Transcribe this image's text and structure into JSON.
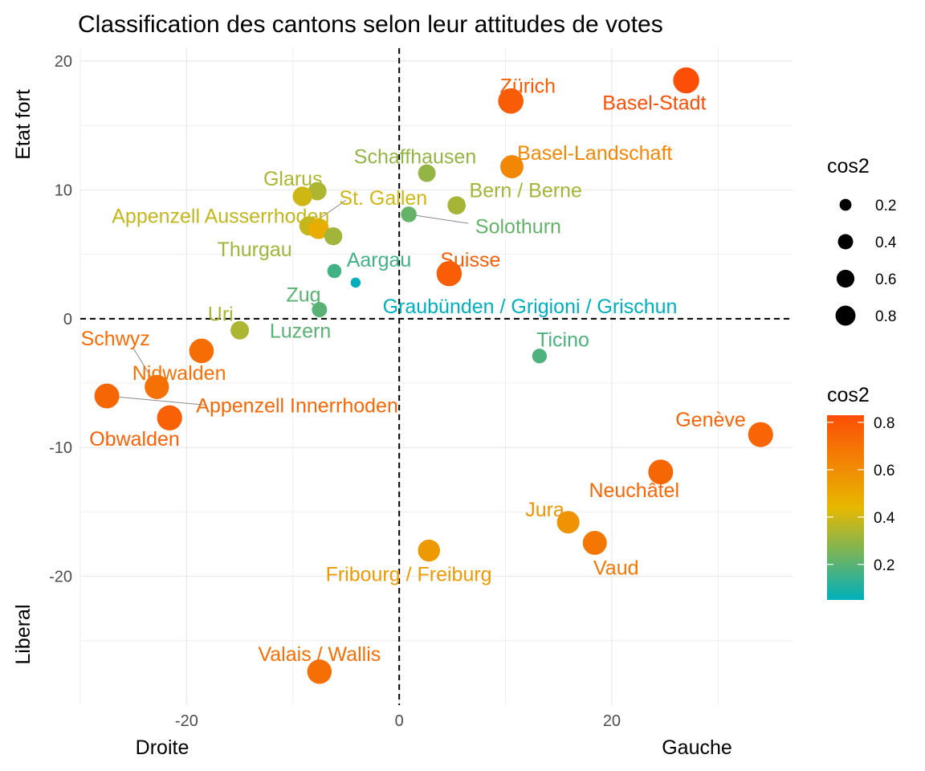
{
  "chart_data": {
    "type": "scatter",
    "title": "Classification des cantons selon leur attitudes de votes",
    "xlim": [
      -30,
      37
    ],
    "ylim": [
      -30,
      21
    ],
    "x_ticks": [
      -20,
      0,
      20
    ],
    "y_ticks": [
      -20,
      -10,
      0,
      10,
      20
    ],
    "grid": true,
    "axis_words": {
      "x_left": "Droite",
      "x_right": "Gauche",
      "y_top": "Etat fort",
      "y_bottom": "Liberal"
    },
    "reference_lines": {
      "x": 0,
      "y": 0,
      "style": "dashed"
    },
    "points": [
      {
        "label": "Basel-Stadt",
        "x": 27.0,
        "y": 18.5,
        "cos2": 0.83
      },
      {
        "label": "Zürich",
        "x": 10.5,
        "y": 16.9,
        "cos2": 0.78
      },
      {
        "label": "Basel-Landschaft",
        "x": 10.6,
        "y": 11.8,
        "cos2": 0.62
      },
      {
        "label": "Schaffhausen",
        "x": 2.6,
        "y": 11.3,
        "cos2": 0.3
      },
      {
        "label": "Bern / Berne",
        "x": 5.4,
        "y": 8.8,
        "cos2": 0.33
      },
      {
        "label": "Solothurn",
        "x": 0.9,
        "y": 8.1,
        "cos2": 0.22
      },
      {
        "label": "Glarus",
        "x": -7.7,
        "y": 9.9,
        "cos2": 0.34
      },
      {
        "label": "St. Gallen",
        "x": -9.1,
        "y": 9.5,
        "cos2": 0.4
      },
      {
        "label": "Appenzell Ausserrhoden",
        "x": -8.5,
        "y": 7.2,
        "cos2": 0.38
      },
      {
        "label": "Appenzell Ausserrhoden (2)",
        "x": -7.6,
        "y": 7.0,
        "cos2": 0.48
      },
      {
        "label": "Thurgau",
        "x": -6.2,
        "y": 6.4,
        "cos2": 0.32
      },
      {
        "label": "Aargau",
        "x": -6.1,
        "y": 3.7,
        "cos2": 0.16
      },
      {
        "label": "Suisse",
        "x": 4.7,
        "y": 3.5,
        "cos2": 0.77
      },
      {
        "label": "Graubünden / Grigioni / Grischun",
        "x": -4.1,
        "y": 2.8,
        "cos2": 0.05
      },
      {
        "label": "Zug",
        "x": -7.5,
        "y": 0.7,
        "cos2": 0.2
      },
      {
        "label": "Uri",
        "x": -15.0,
        "y": -0.9,
        "cos2": 0.34
      },
      {
        "label": "Ticino",
        "x": 13.2,
        "y": -2.9,
        "cos2": 0.18
      },
      {
        "label": "Schwyz",
        "x": -18.6,
        "y": -2.5,
        "cos2": 0.72
      },
      {
        "label": "Nidwalden",
        "x": -22.8,
        "y": -5.3,
        "cos2": 0.7
      },
      {
        "label": "Appenzell Innerrhoden",
        "x": -27.5,
        "y": -6.0,
        "cos2": 0.74
      },
      {
        "label": "Obwalden",
        "x": -21.6,
        "y": -7.7,
        "cos2": 0.76
      },
      {
        "label": "Genève",
        "x": 34.0,
        "y": -9.0,
        "cos2": 0.75
      },
      {
        "label": "Neuchâtel",
        "x": 24.6,
        "y": -11.9,
        "cos2": 0.74
      },
      {
        "label": "Jura",
        "x": 15.9,
        "y": -15.8,
        "cos2": 0.58
      },
      {
        "label": "Vaud",
        "x": 18.4,
        "y": -17.4,
        "cos2": 0.68
      },
      {
        "label": "Fribourg / Freiburg",
        "x": 2.8,
        "y": -18.0,
        "cos2": 0.55
      },
      {
        "label": "Valais / Wallis",
        "x": -7.5,
        "y": -27.4,
        "cos2": 0.71
      }
    ],
    "text_labels": [
      {
        "text": "Basel-Stadt",
        "x": 24.0,
        "y": 16.8,
        "cos2": 0.83
      },
      {
        "text": "Zürich",
        "x": 12.1,
        "y": 18.1,
        "cos2": 0.78
      },
      {
        "text": "Basel-Landschaft",
        "x": 18.4,
        "y": 12.9,
        "cos2": 0.62
      },
      {
        "text": "Schaffhausen",
        "x": 1.5,
        "y": 12.6,
        "cos2": 0.3
      },
      {
        "text": "Bern / Berne",
        "x": 11.9,
        "y": 10.0,
        "cos2": 0.33
      },
      {
        "text": "Solothurn",
        "x": 11.2,
        "y": 7.2,
        "cos2": 0.22
      },
      {
        "text": "Glarus",
        "x": -10.0,
        "y": 10.9,
        "cos2": 0.34
      },
      {
        "text": "St. Gallen",
        "x": -1.5,
        "y": 9.4,
        "cos2": 0.4
      },
      {
        "text": "Appenzell Ausserrhoden",
        "x": -16.8,
        "y": 8.0,
        "cos2": 0.38
      },
      {
        "text": "Thurgau",
        "x": -13.6,
        "y": 5.4,
        "cos2": 0.32
      },
      {
        "text": "Aargau",
        "x": -1.9,
        "y": 4.6,
        "cos2": 0.16
      },
      {
        "text": "Suisse",
        "x": 6.7,
        "y": 4.6,
        "cos2": 0.77
      },
      {
        "text": "Graubünden / Grigioni / Grischun",
        "x": 12.3,
        "y": 1.0,
        "cos2": 0.05
      },
      {
        "text": "Zug",
        "x": -9.0,
        "y": 1.9,
        "cos2": 0.2
      },
      {
        "text": "Luzern",
        "x": -9.3,
        "y": -0.9,
        "cos2": 0.2
      },
      {
        "text": "Uri",
        "x": -16.8,
        "y": 0.4,
        "cos2": 0.34
      },
      {
        "text": "Ticino",
        "x": 15.4,
        "y": -1.6,
        "cos2": 0.18
      },
      {
        "text": "Schwyz",
        "x": -26.7,
        "y": -1.5,
        "cos2": 0.72
      },
      {
        "text": "Nidwalden",
        "x": -20.7,
        "y": -4.2,
        "cos2": 0.7
      },
      {
        "text": "Appenzell Innerrhoden",
        "x": -9.6,
        "y": -6.7,
        "cos2": 0.74
      },
      {
        "text": "Obwalden",
        "x": -24.9,
        "y": -9.3,
        "cos2": 0.76
      },
      {
        "text": "Genève",
        "x": 29.3,
        "y": -7.8,
        "cos2": 0.75
      },
      {
        "text": "Neuchâtel",
        "x": 22.1,
        "y": -13.3,
        "cos2": 0.74
      },
      {
        "text": "Jura",
        "x": 13.7,
        "y": -14.8,
        "cos2": 0.58
      },
      {
        "text": "Vaud",
        "x": 20.4,
        "y": -19.3,
        "cos2": 0.68
      },
      {
        "text": "Fribourg / Freiburg",
        "x": 0.9,
        "y": -19.8,
        "cos2": 0.55
      },
      {
        "text": "Valais / Wallis",
        "x": -7.5,
        "y": -26.0,
        "cos2": 0.71
      }
    ],
    "connectors": [
      {
        "from": [
          0.9,
          8.1
        ],
        "to": [
          6.5,
          7.4
        ]
      },
      {
        "from": [
          -8.5,
          7.2
        ],
        "to": [
          -5.0,
          9.2
        ]
      },
      {
        "from": [
          -25.0,
          -2.3
        ],
        "to": [
          -23.0,
          -5.0
        ]
      },
      {
        "from": [
          -27.5,
          -6.0
        ],
        "to": [
          -18.3,
          -6.7
        ]
      }
    ],
    "legend_size": {
      "title": "cos2",
      "entries": [
        {
          "label": "0.2",
          "value": 0.2
        },
        {
          "label": "0.4",
          "value": 0.4
        },
        {
          "label": "0.6",
          "value": 0.6
        },
        {
          "label": "0.8",
          "value": 0.8
        }
      ]
    },
    "legend_color": {
      "title": "cos2",
      "range": [
        0.05,
        0.83
      ],
      "ticks": [
        {
          "label": "0.2",
          "value": 0.2
        },
        {
          "label": "0.4",
          "value": 0.4
        },
        {
          "label": "0.6",
          "value": 0.6
        },
        {
          "label": "0.8",
          "value": 0.8
        }
      ]
    },
    "colors": {
      "gradient": [
        "#00AFBB",
        "#E7B800",
        "#FC4E07"
      ],
      "gridline": "#ebebeb",
      "tick_text": "#4d4d4d",
      "ref_line": "#000000"
    }
  }
}
